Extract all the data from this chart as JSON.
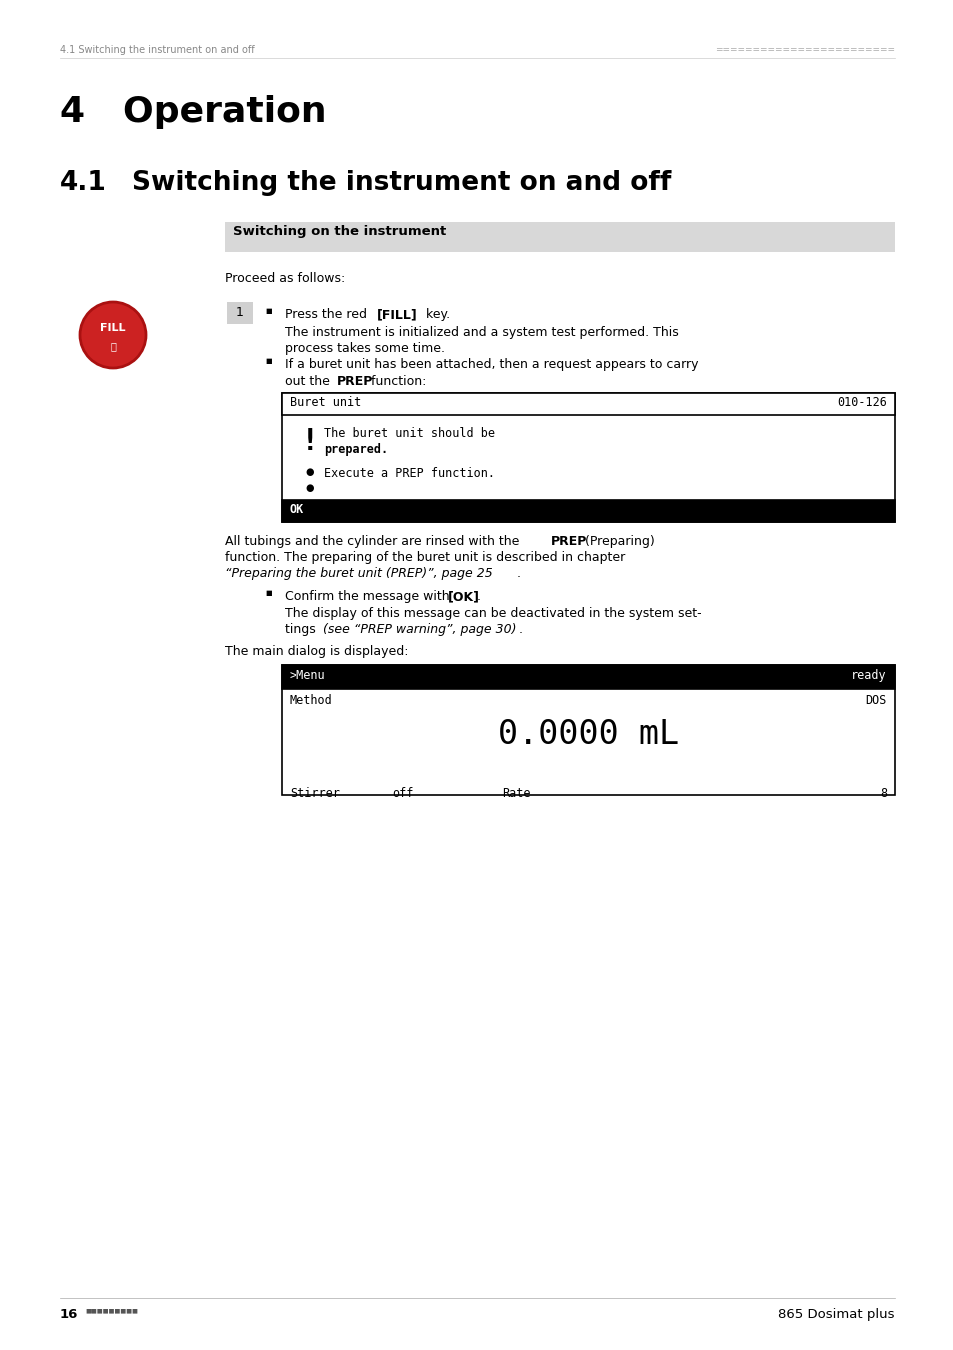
{
  "page_width": 9.54,
  "page_height": 13.5,
  "bg_color": "#ffffff",
  "header_text_left": "4.1 Switching the instrument on and off",
  "header_dots": "========================",
  "chapter_number": "4",
  "chapter_title": "Operation",
  "section_number": "4.1",
  "section_title": "Switching the instrument on and off",
  "box_header_text": "Switching on the instrument",
  "box_header_bg": "#d8d8d8",
  "proceed_text": "Proceed as follows:",
  "step_number": "1",
  "fill_button_color": "#cc2222",
  "fill_button_text": "FILL",
  "screen1_title": "Buret unit",
  "screen1_code": "010-126",
  "screen1_line1": "The buret unit should be",
  "screen1_line2": "prepared.",
  "screen1_line3": "Execute a PREP function.",
  "screen1_ok": "OK",
  "screen2_menu": ">Menu",
  "screen2_ready": "ready",
  "screen2_method": "Method",
  "screen2_dos": "DOS",
  "screen2_volume": "0.0000 mL",
  "screen2_stirrer": "Stirrer",
  "screen2_off": "off",
  "screen2_rate": "Rate",
  "screen2_rate_val": "8",
  "footer_left_num": "16",
  "footer_right": "865 Dosimat plus"
}
